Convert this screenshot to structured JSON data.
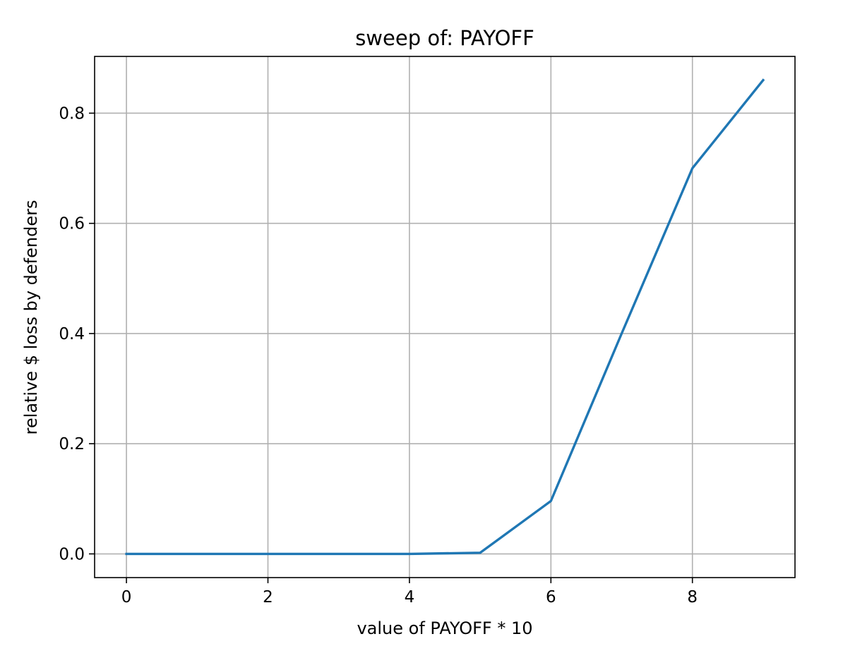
{
  "chart_data": {
    "type": "line",
    "title": "sweep of: PAYOFF",
    "xlabel": "value of PAYOFF * 10",
    "ylabel": "relative $ loss by defenders",
    "xlim": [
      -0.45,
      9.45
    ],
    "ylim": [
      -0.043,
      0.903
    ],
    "xticks": [
      0,
      2,
      4,
      6,
      8
    ],
    "xtick_labels": [
      "0",
      "2",
      "4",
      "6",
      "8"
    ],
    "yticks": [
      0.0,
      0.2,
      0.4,
      0.6,
      0.8
    ],
    "ytick_labels": [
      "0.0",
      "0.2",
      "0.4",
      "0.6",
      "0.8"
    ],
    "grid": true,
    "series": [
      {
        "color": "#1f77b4",
        "x": [
          0,
          1,
          2,
          3,
          4,
          5,
          6,
          7,
          8,
          9
        ],
        "y": [
          0.0,
          0.0,
          0.0,
          0.0,
          0.0,
          0.002,
          0.096,
          0.4,
          0.7,
          0.86
        ]
      }
    ]
  }
}
